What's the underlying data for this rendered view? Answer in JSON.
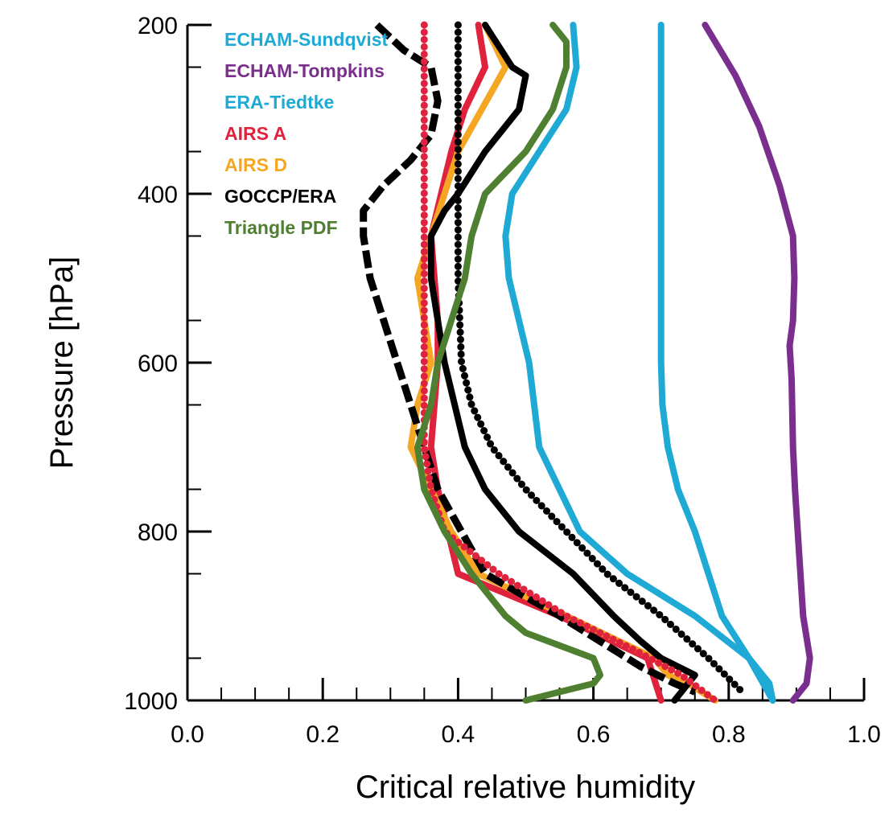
{
  "chart_data": {
    "type": "line",
    "xlabel": "Critical relative humidity",
    "ylabel": "Pressure [hPa]",
    "xlim": [
      0.0,
      1.0
    ],
    "ylim": [
      200,
      1000
    ],
    "y_inverted": true,
    "grid": false,
    "legend_position": "top-left",
    "x_tick_labels": [
      "0.0",
      "0.2",
      "0.4",
      "0.6",
      "0.8",
      "1.0"
    ],
    "y_tick_labels": [
      "200",
      "400",
      "600",
      "800",
      "1000"
    ],
    "series": [
      {
        "name": "ECHAM-Sundqvist",
        "color": "#1faad6",
        "style": "solid",
        "points": [
          [
            0.7,
            200
          ],
          [
            0.7,
            300
          ],
          [
            0.7,
            400
          ],
          [
            0.7,
            500
          ],
          [
            0.7,
            600
          ],
          [
            0.702,
            650
          ],
          [
            0.71,
            700
          ],
          [
            0.725,
            750
          ],
          [
            0.75,
            800
          ],
          [
            0.79,
            900
          ],
          [
            0.83,
            950
          ],
          [
            0.865,
            1000
          ]
        ]
      },
      {
        "name": "ECHAM-Tompkins",
        "color": "#7a2f8e",
        "style": "solid",
        "points": [
          [
            0.765,
            200
          ],
          [
            0.78,
            220
          ],
          [
            0.81,
            260
          ],
          [
            0.845,
            320
          ],
          [
            0.875,
            390
          ],
          [
            0.895,
            450
          ],
          [
            0.897,
            500
          ],
          [
            0.895,
            550
          ],
          [
            0.89,
            580
          ],
          [
            0.893,
            620
          ],
          [
            0.895,
            700
          ],
          [
            0.898,
            750
          ],
          [
            0.91,
            900
          ],
          [
            0.92,
            950
          ],
          [
            0.915,
            980
          ],
          [
            0.895,
            1000
          ]
        ]
      },
      {
        "name": "ERA-Tiedtke",
        "color": "#1faad6",
        "style": "solid",
        "points": [
          [
            0.57,
            200
          ],
          [
            0.575,
            250
          ],
          [
            0.56,
            300
          ],
          [
            0.52,
            350
          ],
          [
            0.48,
            400
          ],
          [
            0.47,
            450
          ],
          [
            0.475,
            500
          ],
          [
            0.49,
            550
          ],
          [
            0.505,
            600
          ],
          [
            0.52,
            700
          ],
          [
            0.55,
            750
          ],
          [
            0.58,
            800
          ],
          [
            0.65,
            850
          ],
          [
            0.75,
            900
          ],
          [
            0.83,
            950
          ],
          [
            0.86,
            980
          ],
          [
            0.865,
            1000
          ]
        ]
      },
      {
        "name": "AIRS A",
        "color": "#e0233d",
        "style": "solid",
        "points": [
          [
            0.43,
            200
          ],
          [
            0.44,
            250
          ],
          [
            0.41,
            300
          ],
          [
            0.39,
            350
          ],
          [
            0.36,
            450
          ],
          [
            0.37,
            550
          ],
          [
            0.37,
            600
          ],
          [
            0.36,
            700
          ],
          [
            0.37,
            750
          ],
          [
            0.385,
            800
          ],
          [
            0.4,
            850
          ],
          [
            0.55,
            900
          ],
          [
            0.68,
            950
          ],
          [
            0.7,
            1000
          ]
        ]
      },
      {
        "name": "AIRS D",
        "color": "#f5a623",
        "style": "solid",
        "points": [
          [
            0.44,
            200
          ],
          [
            0.47,
            250
          ],
          [
            0.4,
            350
          ],
          [
            0.34,
            500
          ],
          [
            0.36,
            600
          ],
          [
            0.34,
            650
          ],
          [
            0.33,
            700
          ],
          [
            0.36,
            750
          ],
          [
            0.39,
            800
          ],
          [
            0.43,
            850
          ],
          [
            0.56,
            900
          ],
          [
            0.69,
            950
          ],
          [
            0.71,
            970
          ],
          [
            0.74,
            980
          ],
          [
            0.78,
            1000
          ]
        ]
      },
      {
        "name": "GOCCP/ERA",
        "color": "#000000",
        "style": "solid",
        "points": [
          [
            0.44,
            200
          ],
          [
            0.48,
            250
          ],
          [
            0.5,
            260
          ],
          [
            0.49,
            300
          ],
          [
            0.44,
            350
          ],
          [
            0.4,
            400
          ],
          [
            0.38,
            420
          ],
          [
            0.36,
            450
          ],
          [
            0.36,
            500
          ],
          [
            0.38,
            600
          ],
          [
            0.41,
            700
          ],
          [
            0.44,
            750
          ],
          [
            0.49,
            800
          ],
          [
            0.57,
            850
          ],
          [
            0.63,
            900
          ],
          [
            0.67,
            930
          ],
          [
            0.7,
            950
          ],
          [
            0.75,
            970
          ],
          [
            0.72,
            1000
          ]
        ]
      },
      {
        "name": "GOCCP/ERA dashed",
        "color": "#000000",
        "style": "dashed",
        "points": [
          [
            0.28,
            200
          ],
          [
            0.32,
            230
          ],
          [
            0.36,
            250
          ],
          [
            0.37,
            290
          ],
          [
            0.36,
            330
          ],
          [
            0.33,
            360
          ],
          [
            0.29,
            390
          ],
          [
            0.26,
            420
          ],
          [
            0.26,
            450
          ],
          [
            0.27,
            500
          ],
          [
            0.29,
            550
          ],
          [
            0.31,
            600
          ],
          [
            0.33,
            650
          ],
          [
            0.35,
            700
          ],
          [
            0.37,
            750
          ],
          [
            0.44,
            850
          ],
          [
            0.55,
            900
          ],
          [
            0.63,
            940
          ],
          [
            0.67,
            960
          ],
          [
            0.72,
            980
          ],
          [
            0.75,
            990
          ]
        ]
      },
      {
        "name": "dotted red",
        "color": "#e0233d",
        "style": "dotted",
        "points": [
          [
            0.35,
            200
          ],
          [
            0.35,
            400
          ],
          [
            0.35,
            600
          ],
          [
            0.35,
            700
          ],
          [
            0.36,
            750
          ],
          [
            0.38,
            800
          ],
          [
            0.46,
            850
          ],
          [
            0.56,
            900
          ],
          [
            0.66,
            940
          ],
          [
            0.73,
            970
          ],
          [
            0.78,
            1000
          ]
        ]
      },
      {
        "name": "dotted black",
        "color": "#000000",
        "style": "dotted",
        "points": [
          [
            0.4,
            200
          ],
          [
            0.4,
            300
          ],
          [
            0.4,
            400
          ],
          [
            0.4,
            500
          ],
          [
            0.405,
            600
          ],
          [
            0.42,
            650
          ],
          [
            0.45,
            700
          ],
          [
            0.5,
            750
          ],
          [
            0.56,
            800
          ],
          [
            0.62,
            850
          ],
          [
            0.7,
            900
          ],
          [
            0.77,
            950
          ],
          [
            0.82,
            990
          ]
        ]
      },
      {
        "name": "Triangle PDF",
        "color": "#4f7f30",
        "style": "solid",
        "points": [
          [
            0.54,
            200
          ],
          [
            0.56,
            220
          ],
          [
            0.56,
            250
          ],
          [
            0.54,
            300
          ],
          [
            0.5,
            350
          ],
          [
            0.44,
            400
          ],
          [
            0.42,
            450
          ],
          [
            0.41,
            500
          ],
          [
            0.39,
            550
          ],
          [
            0.37,
            600
          ],
          [
            0.36,
            650
          ],
          [
            0.34,
            700
          ],
          [
            0.35,
            750
          ],
          [
            0.38,
            800
          ],
          [
            0.42,
            850
          ],
          [
            0.47,
            900
          ],
          [
            0.5,
            920
          ],
          [
            0.6,
            950
          ],
          [
            0.61,
            970
          ],
          [
            0.6,
            980
          ],
          [
            0.5,
            1000
          ]
        ]
      }
    ],
    "legend": [
      {
        "label": "ECHAM-Sundqvist",
        "color": "#1faad6"
      },
      {
        "label": "ECHAM-Tompkins",
        "color": "#7a2f8e"
      },
      {
        "label": "ERA-Tiedtke",
        "color": "#1faad6"
      },
      {
        "label": "AIRS A",
        "color": "#e0233d"
      },
      {
        "label": "AIRS D",
        "color": "#f5a623"
      },
      {
        "label": "GOCCP/ERA",
        "color": "#000000"
      },
      {
        "label": "Triangle PDF",
        "color": "#4f7f30"
      }
    ]
  }
}
